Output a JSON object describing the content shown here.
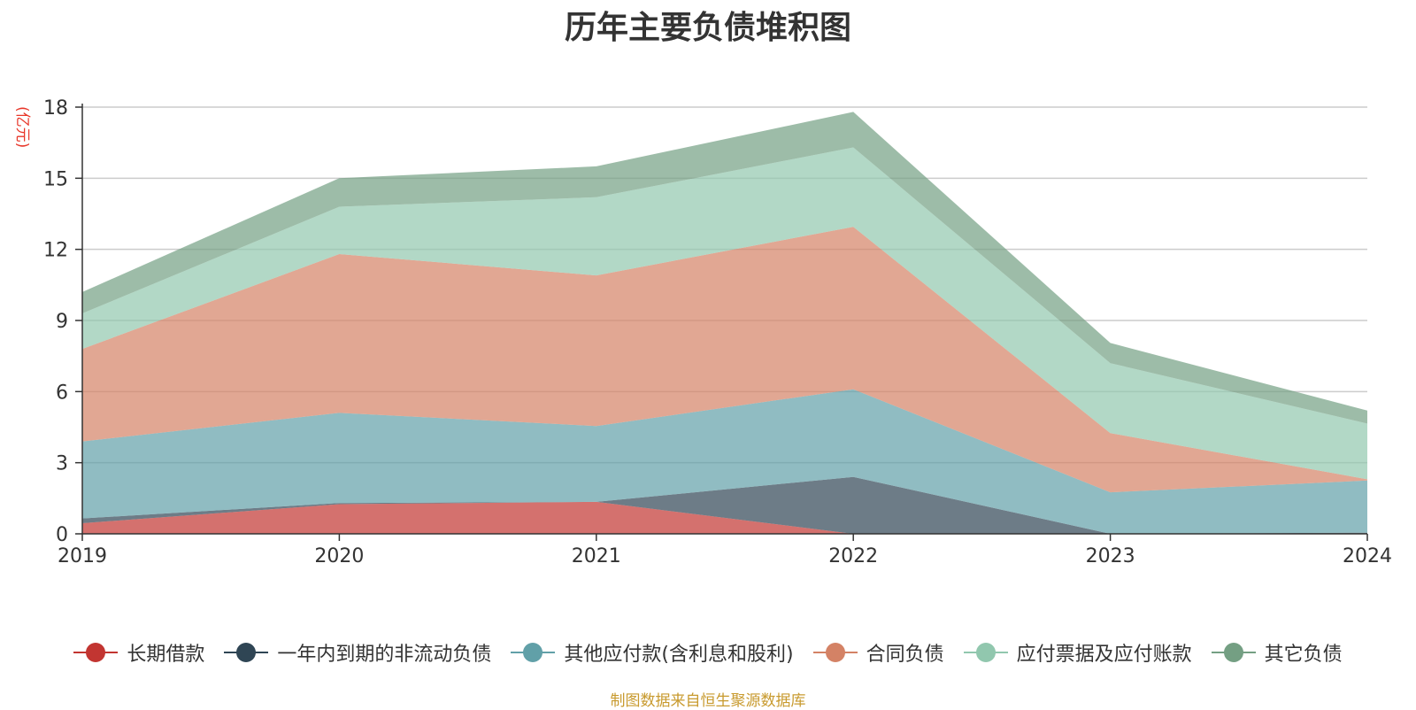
{
  "chart_data": {
    "type": "area",
    "title": "历年主要负债堆积图",
    "unit_label": "(亿元)",
    "stacked": true,
    "x": [
      "2019",
      "2020",
      "2021",
      "2022",
      "2023",
      "2024"
    ],
    "ylim": [
      0,
      18
    ],
    "yticks": [
      "0",
      "3",
      "6",
      "9",
      "12",
      "15",
      "18"
    ],
    "grid": true,
    "legend_position": "bottom",
    "series": [
      {
        "name": "长期借款",
        "color": "#c23531",
        "values": [
          0.45,
          1.25,
          1.35,
          0.0,
          0.0,
          0.0
        ]
      },
      {
        "name": "一年内到期的非流动负债",
        "color": "#2f4554",
        "values": [
          0.2,
          0.05,
          0.0,
          2.4,
          0.0,
          0.05
        ]
      },
      {
        "name": "其他应付款(含利息和股利)",
        "color": "#61a0a8",
        "values": [
          3.25,
          3.8,
          3.2,
          3.7,
          1.75,
          2.2
        ]
      },
      {
        "name": "合同负债",
        "color": "#d48265",
        "values": [
          3.9,
          6.7,
          6.35,
          6.85,
          2.5,
          0.05
        ]
      },
      {
        "name": "应付票据及应付账款",
        "color": "#91c7ae",
        "values": [
          1.5,
          2.0,
          3.3,
          3.35,
          2.95,
          2.35
        ]
      },
      {
        "name": "其它负债",
        "color": "#749f83",
        "values": [
          0.9,
          1.2,
          1.3,
          1.5,
          0.85,
          0.55
        ]
      }
    ],
    "source_note": "制图数据来自恒生聚源数据库"
  }
}
